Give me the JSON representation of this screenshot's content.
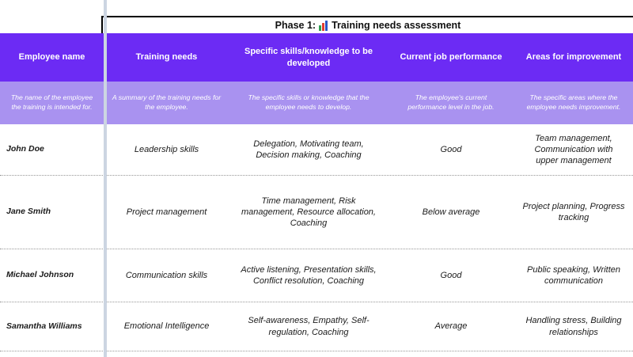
{
  "title": {
    "prefix": "Phase 1:",
    "suffix": "Training needs assessment",
    "icon": "bar-chart-emoji"
  },
  "colors": {
    "header_bg": "#6C2BF4",
    "description_bg": "#A992F0",
    "header_text": "#FFFFFF",
    "body_text": "#1B1B1B",
    "frozen_divider": "#CCD5E2",
    "icon_bar_green": "#2E9E4F",
    "icon_bar_red": "#E03C31",
    "icon_bar_blue": "#2A56C6"
  },
  "columns": [
    {
      "label": "Employee name",
      "description": "The name of the employee the training is intended for."
    },
    {
      "label": "Training needs",
      "description": "A summary of the training needs for the employee."
    },
    {
      "label": "Specific skills/knowledge to be developed",
      "description": "The specific skills or knowledge that the employee needs to develop."
    },
    {
      "label": "Current job performance",
      "description": "The employee's current performance level in the job."
    },
    {
      "label": "Areas for improvement",
      "description": "The specific areas where the employee needs improvement."
    }
  ],
  "rows": [
    {
      "employee": "John Doe",
      "training_needs": "Leadership skills",
      "skills": "Delegation, Motivating team, Decision making, Coaching",
      "performance": "Good",
      "improvement": "Team management, Communication with upper management"
    },
    {
      "employee": "Jane Smith",
      "training_needs": "Project management",
      "skills": "Time management, Risk management, Resource allocation, Coaching",
      "performance": "Below average",
      "improvement": "Project planning, Progress tracking"
    },
    {
      "employee": "Michael Johnson",
      "training_needs": "Communication skills",
      "skills": "Active listening, Presentation skills, Conflict resolution, Coaching",
      "performance": "Good",
      "improvement": "Public speaking, Written communication"
    },
    {
      "employee": "Samantha Williams",
      "training_needs": "Emotional Intelligence",
      "skills": "Self-awareness, Empathy, Self-regulation, Coaching",
      "performance": "Average",
      "improvement": "Handling stress, Building relationships"
    }
  ]
}
